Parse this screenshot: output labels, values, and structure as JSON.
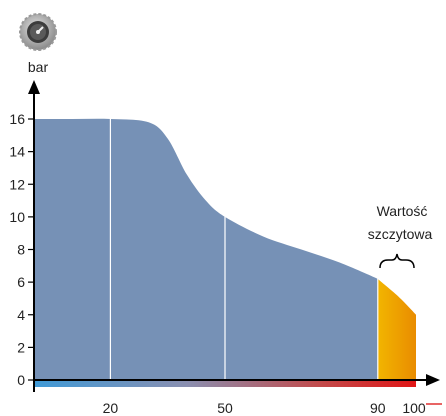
{
  "chart_data": {
    "type": "area",
    "xlabel": "",
    "ylabel": "bar",
    "xlim": [
      0,
      100
    ],
    "ylim": [
      0,
      16
    ],
    "x_tick_labels": [
      "20",
      "50",
      "90",
      "100"
    ],
    "x_ticks": [
      20,
      50,
      90,
      100
    ],
    "y_ticks": [
      0,
      2,
      4,
      6,
      8,
      10,
      12,
      14,
      16
    ],
    "y_tick_labels": [
      "0",
      "2",
      "4",
      "6",
      "8",
      "10",
      "12",
      "14",
      "16"
    ],
    "x_gridlines": [
      20,
      50,
      90
    ],
    "series": [
      {
        "x": [
          0,
          10,
          20,
          30,
          35,
          40,
          45,
          50,
          60,
          70,
          80,
          90
        ],
        "y": [
          16,
          16,
          16,
          15.8,
          14.8,
          12.6,
          11.0,
          10.0,
          8.8,
          8.0,
          7.2,
          6.2
        ],
        "color": "#7691b6"
      },
      {
        "x": [
          90,
          92,
          95,
          98,
          100
        ],
        "y": [
          6.2,
          5.8,
          5.2,
          4.5,
          4.0
        ],
        "color": "#f0a800"
      }
    ],
    "annotation": {
      "text_line1": "Wartość",
      "text_line2": "szczytowa",
      "x_range": [
        90,
        100
      ]
    },
    "gradient_bar_colors": [
      "#3f9ad7",
      "#8a8fb0",
      "#c24a4a",
      "#e01515"
    ]
  },
  "icons": {
    "gauge": "pressure-gauge-icon"
  }
}
